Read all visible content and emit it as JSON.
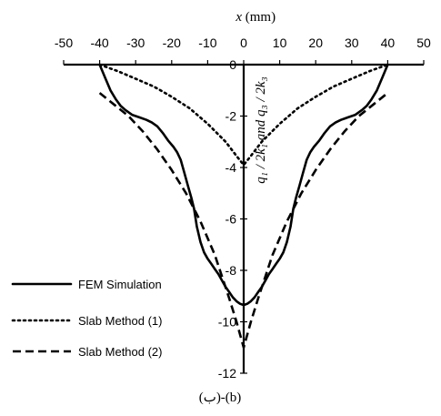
{
  "chart_data": {
    "type": "line",
    "xlabel_var": "x",
    "xlabel_unit": " (mm)",
    "ylabel": "q₁ / 2k₁  and  q₃ / 2k₃",
    "caption": "(ب)-(b)",
    "xlim": [
      -50,
      50
    ],
    "ylim": [
      -12,
      0
    ],
    "x_ticks": [
      -50,
      -40,
      -30,
      -20,
      -10,
      0,
      10,
      20,
      30,
      40,
      50
    ],
    "y_ticks": [
      0,
      -2,
      -4,
      -6,
      -8,
      -10,
      -12
    ],
    "x_axis_position": "top",
    "grid": false,
    "legend_position": "bottom-left",
    "series": [
      {
        "name": "FEM Simulation",
        "style": "solid",
        "color": "#000000",
        "x": [
          -40,
          -38.5,
          -37,
          -35.5,
          -34.2,
          -33,
          -31,
          -29,
          -27,
          -25.5,
          -24,
          -22.5,
          -21,
          -19.5,
          -18.5,
          -17.5,
          -16.5,
          -15.5,
          -14.5,
          -13.8,
          -13,
          -12,
          -11,
          -10,
          -9,
          -8,
          -7,
          -6,
          -5,
          -4,
          -3,
          -2,
          -1,
          0,
          1,
          2,
          3,
          4,
          5,
          6,
          7,
          8,
          9,
          10,
          11,
          12,
          13,
          13.8,
          14.5,
          15.5,
          16.5,
          17.5,
          18.5,
          19.5,
          21,
          22.5,
          24,
          25.5,
          27,
          29,
          31,
          33,
          34.2,
          35.5,
          37,
          38.5,
          40
        ],
        "y": [
          0,
          -0.5,
          -1.0,
          -1.35,
          -1.6,
          -1.75,
          -1.95,
          -2.05,
          -2.15,
          -2.25,
          -2.4,
          -2.65,
          -2.95,
          -3.2,
          -3.4,
          -3.7,
          -4.2,
          -4.7,
          -5.2,
          -5.6,
          -6.3,
          -6.9,
          -7.3,
          -7.55,
          -7.75,
          -7.95,
          -8.15,
          -8.4,
          -8.65,
          -8.85,
          -9.05,
          -9.2,
          -9.3,
          -9.35,
          -9.3,
          -9.2,
          -9.05,
          -8.85,
          -8.65,
          -8.4,
          -8.15,
          -7.95,
          -7.75,
          -7.55,
          -7.3,
          -6.9,
          -6.3,
          -5.6,
          -5.2,
          -4.7,
          -4.2,
          -3.7,
          -3.4,
          -3.2,
          -2.95,
          -2.65,
          -2.4,
          -2.25,
          -2.15,
          -2.05,
          -1.95,
          -1.75,
          -1.6,
          -1.35,
          -1.0,
          -0.5,
          0
        ]
      },
      {
        "name": "Slab Method (1)",
        "style": "dotted",
        "color": "#000000",
        "x": [
          -40,
          -35,
          -30,
          -25,
          -20,
          -15,
          -10,
          -5,
          -2,
          0,
          2,
          5,
          10,
          15,
          20,
          25,
          30,
          35,
          40
        ],
        "y": [
          0,
          -0.25,
          -0.55,
          -0.85,
          -1.25,
          -1.7,
          -2.3,
          -3.0,
          -3.55,
          -3.9,
          -3.55,
          -3.0,
          -2.3,
          -1.7,
          -1.25,
          -0.85,
          -0.55,
          -0.25,
          0
        ]
      },
      {
        "name": "Slab Method (2)",
        "style": "dashed",
        "color": "#000000",
        "x": [
          -40,
          -36,
          -32,
          -28,
          -24,
          -20,
          -16,
          -12,
          -8,
          -4,
          -2,
          0,
          2,
          4,
          8,
          12,
          16,
          20,
          24,
          28,
          32,
          36,
          40
        ],
        "y": [
          -1.1,
          -1.55,
          -2.0,
          -2.6,
          -3.3,
          -4.1,
          -5.0,
          -6.1,
          -7.4,
          -9.1,
          -10.0,
          -11.0,
          -10.0,
          -9.1,
          -7.4,
          -6.1,
          -5.0,
          -4.1,
          -3.3,
          -2.6,
          -2.0,
          -1.55,
          -1.1
        ]
      }
    ]
  }
}
